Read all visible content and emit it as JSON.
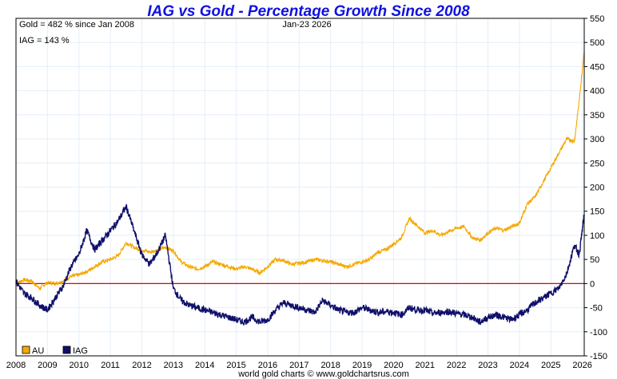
{
  "chart_data": {
    "type": "line",
    "title": "IAG vs Gold - Percentage Growth Since 2008",
    "annotations": {
      "gold_summary": "Gold = 482 % since Jan 2008",
      "iag_summary": "IAG = 143 %",
      "date": "Jan-23  2026"
    },
    "footer": "world gold charts © www.goldchartsrus.com",
    "xlabel": "",
    "ylabel": "",
    "xlim": [
      2008,
      2026.06
    ],
    "ylim": [
      -150,
      550
    ],
    "x_ticks": [
      "2008",
      "2009",
      "2010",
      "2011",
      "2012",
      "2013",
      "2014",
      "2015",
      "2016",
      "2017",
      "2018",
      "2019",
      "2020",
      "2021",
      "2022",
      "2023",
      "2024",
      "2025",
      "2026"
    ],
    "y_ticks": [
      "550",
      "500",
      "450",
      "400",
      "350",
      "300",
      "250",
      "200",
      "150",
      "100",
      "50",
      "0",
      "-50",
      "-100",
      "-150"
    ],
    "grid": true,
    "zero_line": 0,
    "legend": {
      "placement": "bottom-left",
      "items": [
        {
          "label": "AU",
          "color": "#f5a800"
        },
        {
          "label": "IAG",
          "color": "#10106a"
        }
      ]
    },
    "colors": {
      "AU": "#f5a800",
      "IAG": "#10106a",
      "zero_line": "#e00000",
      "grid": "#e4eef8",
      "title": "#1010e0"
    },
    "x": [
      2008.0,
      2008.25,
      2008.5,
      2008.75,
      2009.0,
      2009.25,
      2009.5,
      2009.75,
      2010.0,
      2010.25,
      2010.5,
      2010.75,
      2011.0,
      2011.25,
      2011.5,
      2011.75,
      2012.0,
      2012.25,
      2012.5,
      2012.75,
      2013.0,
      2013.25,
      2013.5,
      2013.75,
      2014.0,
      2014.25,
      2014.5,
      2014.75,
      2015.0,
      2015.25,
      2015.5,
      2015.75,
      2016.0,
      2016.25,
      2016.5,
      2016.75,
      2017.0,
      2017.25,
      2017.5,
      2017.75,
      2018.0,
      2018.25,
      2018.5,
      2018.75,
      2019.0,
      2019.25,
      2019.5,
      2019.75,
      2020.0,
      2020.25,
      2020.5,
      2020.75,
      2021.0,
      2021.25,
      2021.5,
      2021.75,
      2022.0,
      2022.25,
      2022.5,
      2022.75,
      2023.0,
      2023.25,
      2023.5,
      2023.75,
      2024.0,
      2024.25,
      2024.5,
      2024.75,
      2025.0,
      2025.25,
      2025.5,
      2025.75,
      2025.9,
      2026.06
    ],
    "series": [
      {
        "name": "AU",
        "values": [
          0,
          8,
          5,
          -10,
          2,
          0,
          5,
          15,
          18,
          25,
          35,
          45,
          50,
          58,
          85,
          75,
          70,
          65,
          70,
          75,
          68,
          45,
          35,
          30,
          35,
          45,
          40,
          35,
          30,
          35,
          30,
          22,
          35,
          50,
          48,
          40,
          42,
          45,
          50,
          48,
          45,
          40,
          35,
          40,
          45,
          50,
          65,
          70,
          82,
          95,
          135,
          120,
          105,
          110,
          100,
          108,
          115,
          118,
          95,
          90,
          105,
          115,
          110,
          118,
          125,
          165,
          180,
          210,
          240,
          270,
          300,
          295,
          380,
          482
        ]
      },
      {
        "name": "IAG",
        "values": [
          5,
          -20,
          -30,
          -45,
          -55,
          -30,
          -5,
          35,
          60,
          110,
          70,
          90,
          110,
          130,
          160,
          110,
          60,
          40,
          65,
          100,
          -10,
          -35,
          -45,
          -50,
          -55,
          -60,
          -65,
          -70,
          -75,
          -80,
          -70,
          -80,
          -75,
          -55,
          -40,
          -45,
          -50,
          -55,
          -60,
          -35,
          -45,
          -55,
          -60,
          -60,
          -50,
          -55,
          -60,
          -58,
          -60,
          -65,
          -50,
          -55,
          -55,
          -62,
          -60,
          -58,
          -62,
          -65,
          -70,
          -80,
          -70,
          -65,
          -70,
          -75,
          -65,
          -55,
          -40,
          -30,
          -20,
          -10,
          20,
          80,
          60,
          143
        ]
      }
    ]
  }
}
